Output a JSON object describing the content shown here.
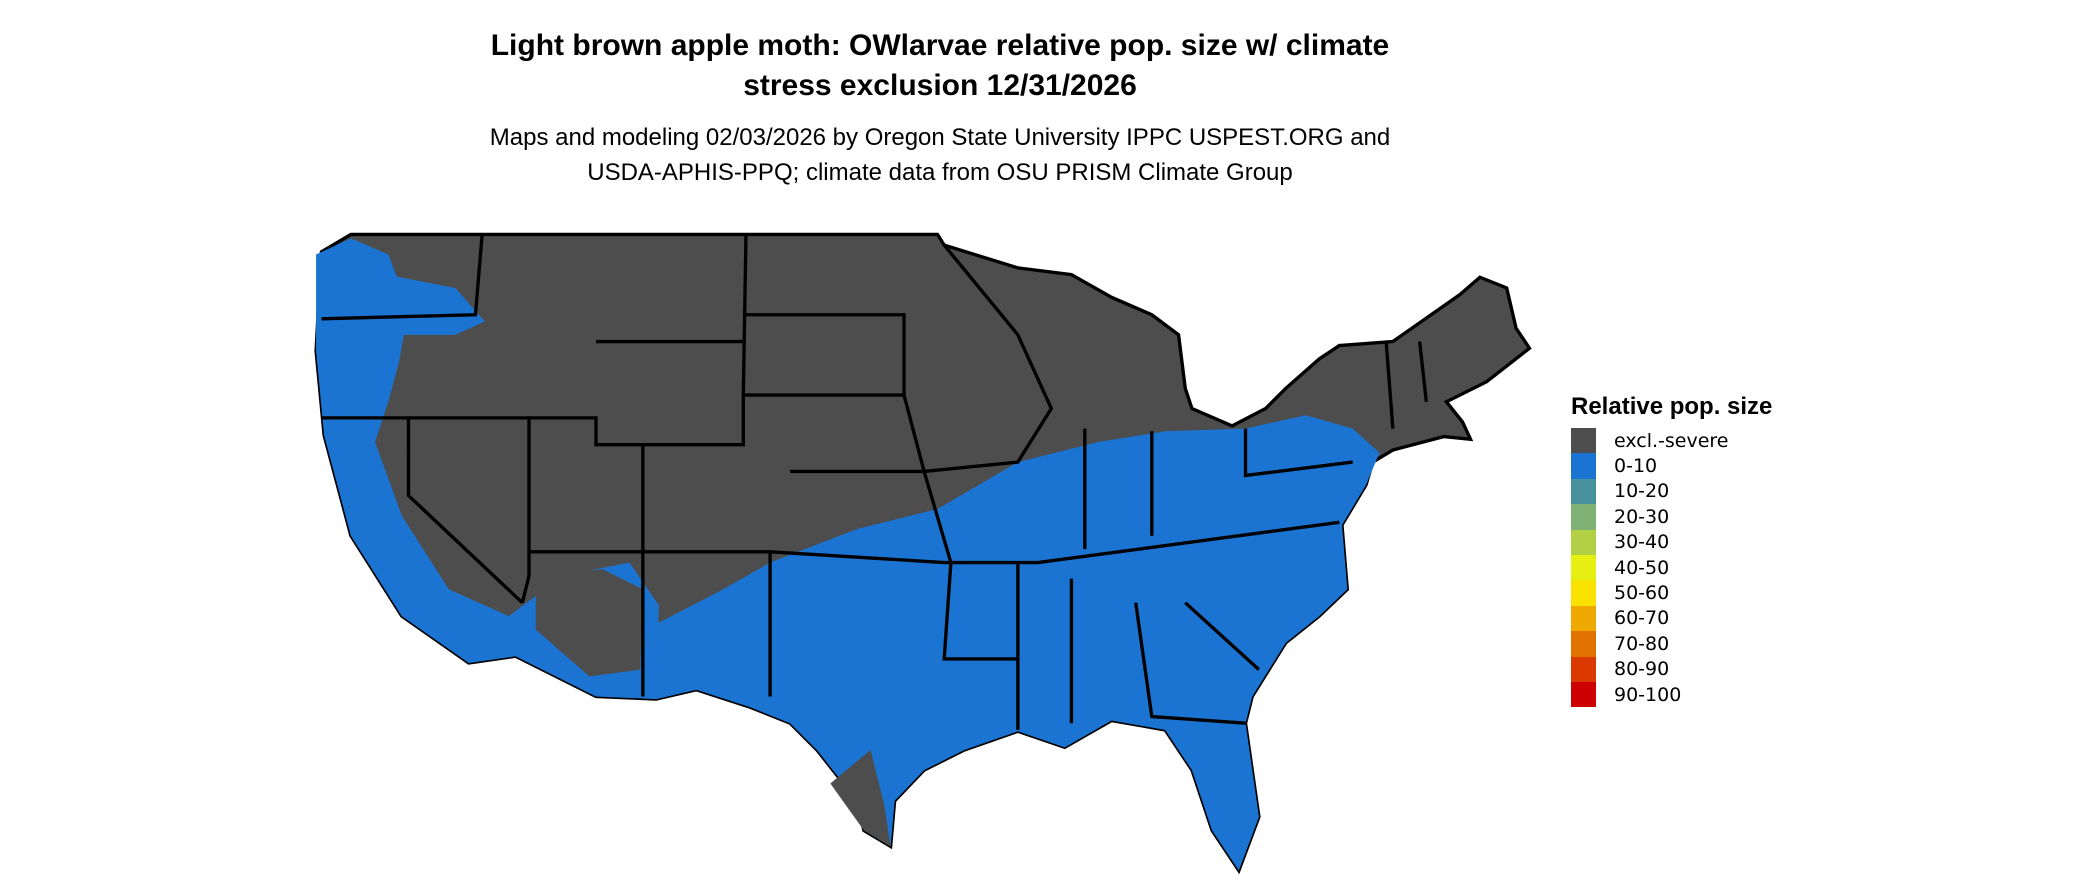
{
  "title_line1": "Light brown apple moth: OWlarvae relative pop. size w/ climate",
  "title_line2": "stress exclusion 12/31/2026",
  "subtitle_line1": "Maps and modeling 02/03/2026 by Oregon State University IPPC USPEST.ORG and",
  "subtitle_line2": "USDA-APHIS-PPQ; climate data from OSU PRISM Climate Group",
  "map": {
    "region": "Contiguous United States",
    "state_borders": true,
    "border_color": "#000000"
  },
  "legend": {
    "title": "Relative pop. size",
    "position": "right",
    "items": [
      {
        "label": "excl.-severe",
        "color": "#4d4d4d"
      },
      {
        "label": "0-10",
        "color": "#1b74d1"
      },
      {
        "label": "10-20",
        "color": "#48919c"
      },
      {
        "label": "20-30",
        "color": "#7fb074"
      },
      {
        "label": "30-40",
        "color": "#b2d043"
      },
      {
        "label": "40-50",
        "color": "#e5f012"
      },
      {
        "label": "50-60",
        "color": "#f9e100"
      },
      {
        "label": "60-70",
        "color": "#eeaa00"
      },
      {
        "label": "70-80",
        "color": "#e27200"
      },
      {
        "label": "80-90",
        "color": "#da3900"
      },
      {
        "label": "90-100",
        "color": "#cd0000"
      }
    ]
  }
}
